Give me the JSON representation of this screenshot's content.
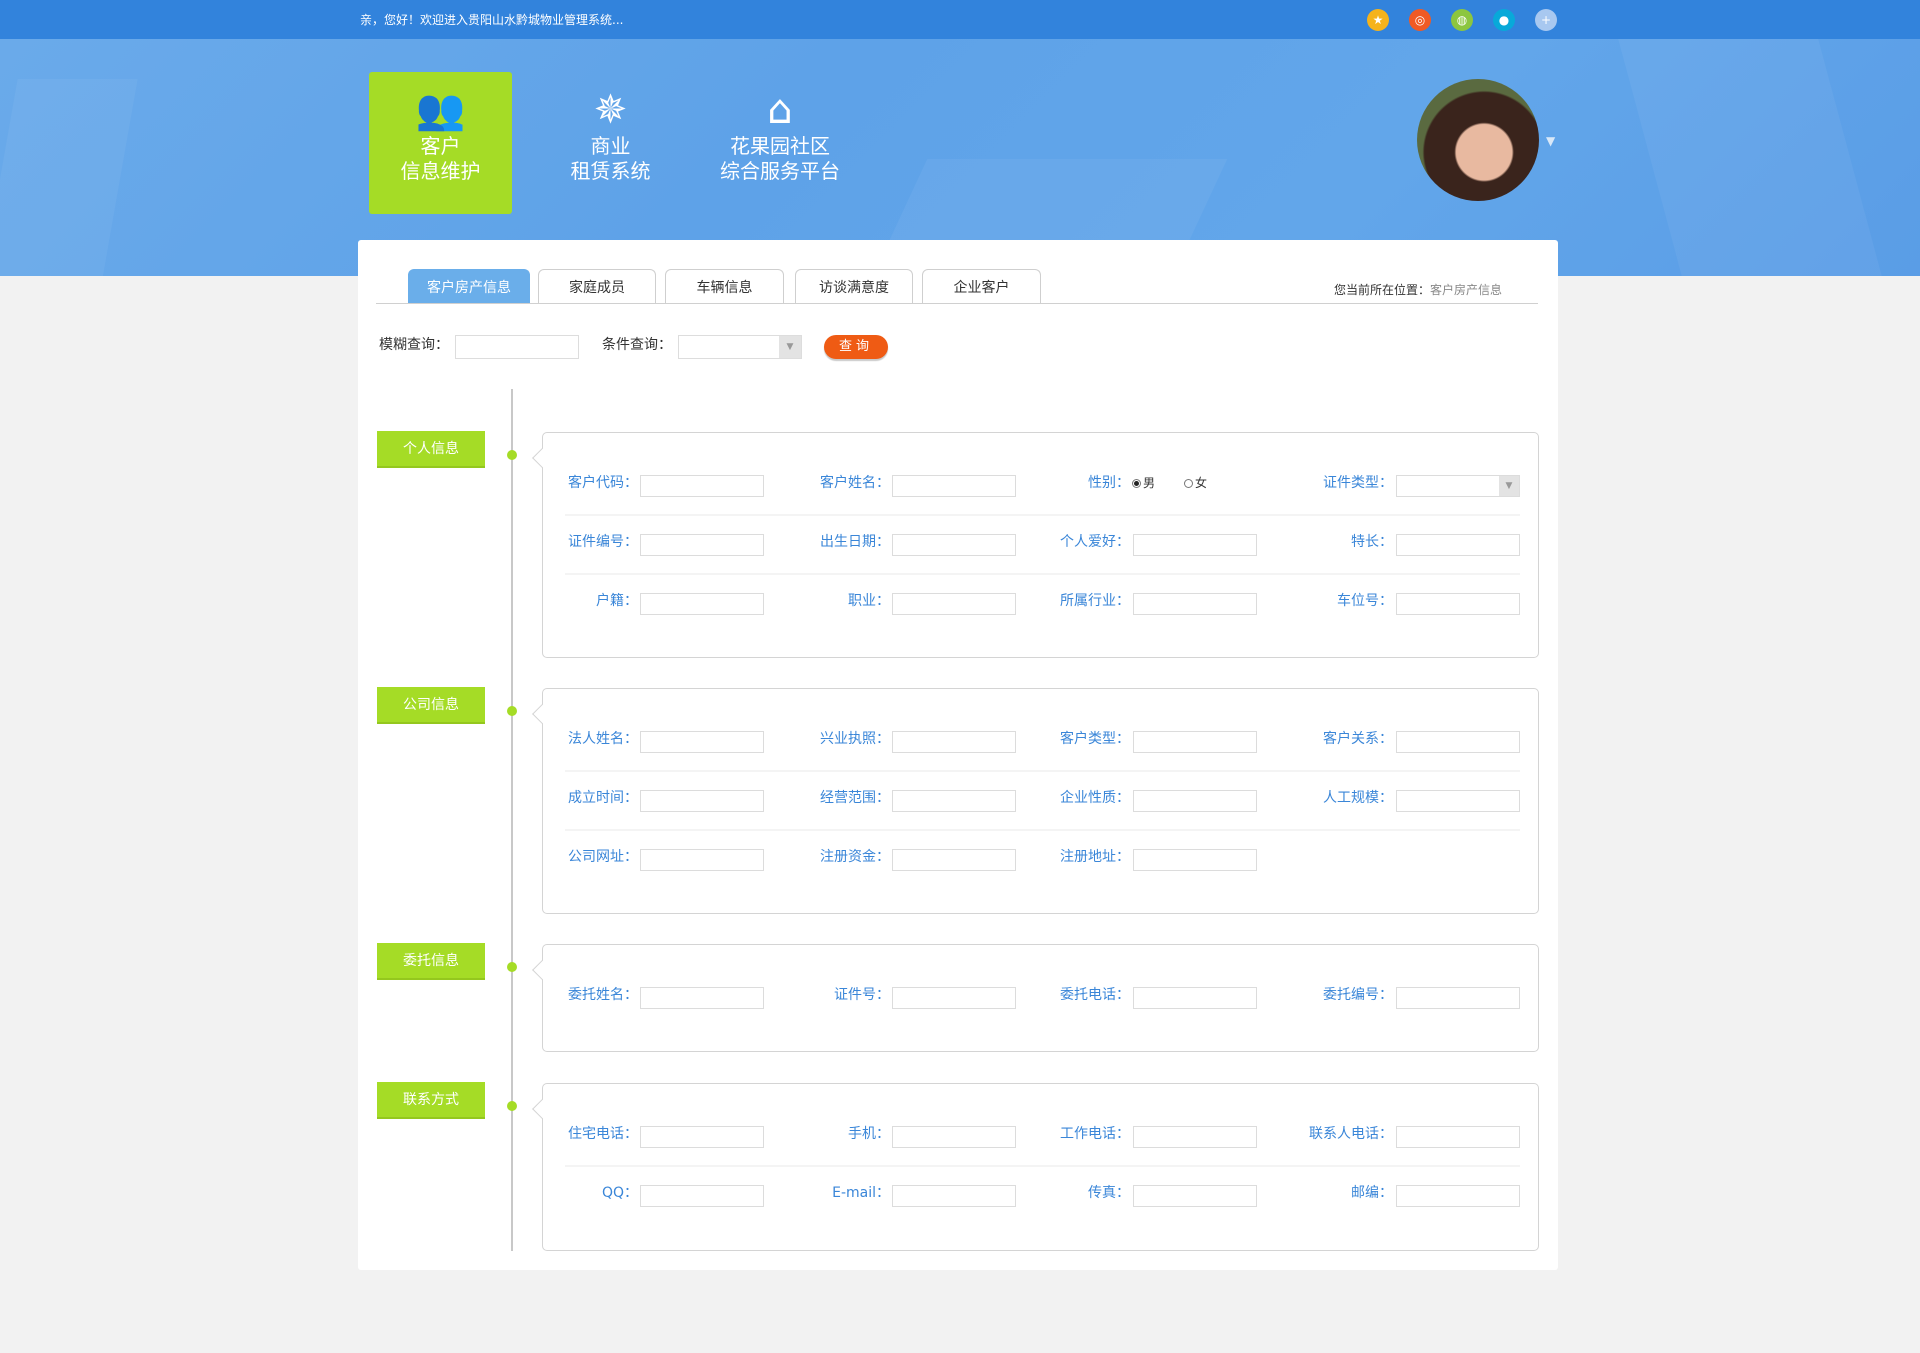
{
  "topbar": {
    "welcome": "亲，您好！欢迎进入贵阳山水黔城物业管理系统...",
    "social_icons": [
      {
        "name": "favorite-star-icon",
        "color": "#f5b31c",
        "glyph": "★"
      },
      {
        "name": "weibo-icon",
        "color": "#f05a24",
        "glyph": "◎"
      },
      {
        "name": "wechat-icon",
        "color": "#8cc63f",
        "glyph": "◍"
      },
      {
        "name": "qq-icon",
        "color": "#08a9d9",
        "glyph": "●"
      },
      {
        "name": "add-icon",
        "color": "#a8c8f0",
        "glyph": "+"
      }
    ]
  },
  "nav": [
    {
      "line1": "客户",
      "line2": "信息维护",
      "icon": "users-icon",
      "glyph": "👥",
      "active": true
    },
    {
      "line1": "商业",
      "line2": "租赁系统",
      "icon": "compass-star-icon",
      "glyph": "✵",
      "active": false
    },
    {
      "line1": "花果园社区",
      "line2": "综合服务平台",
      "icon": "home-icon",
      "glyph": "⌂",
      "active": false
    }
  ],
  "tabs": [
    "客户房产信息",
    "家庭成员",
    "车辆信息",
    "访谈满意度",
    "企业客户"
  ],
  "breadcrumb": {
    "label": "您当前所在位置：",
    "current": "客户房产信息"
  },
  "search": {
    "fuzzy_label": "模糊查询：",
    "fuzzy_value": "",
    "condition_label": "条件查询：",
    "condition_value": "",
    "button": "查询"
  },
  "colors": {
    "accent_green": "#a5dc26",
    "topbar_blue": "#3283dc",
    "label_blue": "#3a86d8",
    "button_orange": "#ef5b14"
  },
  "sections": [
    {
      "title": "个人信息",
      "rows": [
        [
          {
            "label": "客户代码："
          },
          {
            "label": "客户姓名："
          },
          {
            "label": "性别：",
            "type": "radio",
            "options": [
              "男",
              "女"
            ],
            "selected": "男"
          },
          {
            "label": "证件类型：",
            "type": "select"
          }
        ],
        [
          {
            "label": "证件编号："
          },
          {
            "label": "出生日期："
          },
          {
            "label": "个人爱好："
          },
          {
            "label": "特长："
          }
        ],
        [
          {
            "label": "户籍："
          },
          {
            "label": "职业："
          },
          {
            "label": "所属行业："
          },
          {
            "label": "车位号："
          }
        ]
      ]
    },
    {
      "title": "公司信息",
      "rows": [
        [
          {
            "label": "法人姓名："
          },
          {
            "label": "兴业执照："
          },
          {
            "label": "客户类型："
          },
          {
            "label": "客户关系："
          }
        ],
        [
          {
            "label": "成立时间："
          },
          {
            "label": "经营范围："
          },
          {
            "label": "企业性质："
          },
          {
            "label": "人工规模："
          }
        ],
        [
          {
            "label": "公司网址："
          },
          {
            "label": "注册资金："
          },
          {
            "label": "注册地址："
          }
        ]
      ]
    },
    {
      "title": "委托信息",
      "rows": [
        [
          {
            "label": "委托姓名："
          },
          {
            "label": "证件号："
          },
          {
            "label": "委托电话："
          },
          {
            "label": "委托编号："
          }
        ]
      ]
    },
    {
      "title": "联系方式",
      "rows": [
        [
          {
            "label": "住宅电话："
          },
          {
            "label": "手机："
          },
          {
            "label": "工作电话："
          },
          {
            "label": "联系人电话："
          }
        ],
        [
          {
            "label": "QQ："
          },
          {
            "label": "E-mail："
          },
          {
            "label": "传真："
          },
          {
            "label": "邮编："
          }
        ]
      ]
    }
  ]
}
